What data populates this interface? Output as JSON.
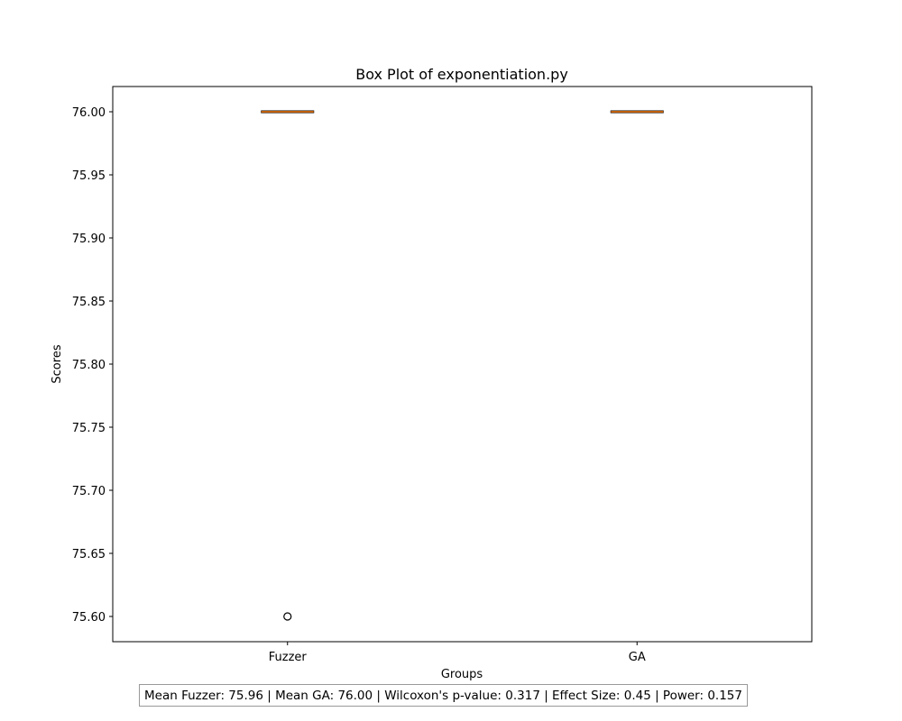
{
  "chart_data": {
    "type": "box",
    "title": "Box Plot of exponentiation.py",
    "xlabel": "Groups",
    "ylabel": "Scores",
    "ylim": [
      75.58,
      76.02
    ],
    "yticks": [
      76.0,
      75.95,
      75.9,
      75.85,
      75.8,
      75.75,
      75.7,
      75.65,
      75.6
    ],
    "categories": [
      "Fuzzer",
      "GA"
    ],
    "boxes": [
      {
        "category": "Fuzzer",
        "q1": 76.0,
        "median": 76.0,
        "q3": 76.0,
        "whisker_low": 76.0,
        "whisker_high": 76.0,
        "outliers": [
          75.6
        ]
      },
      {
        "category": "GA",
        "q1": 76.0,
        "median": 76.0,
        "q3": 76.0,
        "whisker_low": 76.0,
        "whisker_high": 76.0,
        "outliers": []
      }
    ],
    "grid": false,
    "colors": {
      "median": "#ff7f0e",
      "box": "#000000"
    }
  },
  "stats_text": "Mean Fuzzer: 75.96 | Mean GA: 76.00 | Wilcoxon's p-value: 0.317 | Effect Size: 0.45 | Power: 0.157"
}
